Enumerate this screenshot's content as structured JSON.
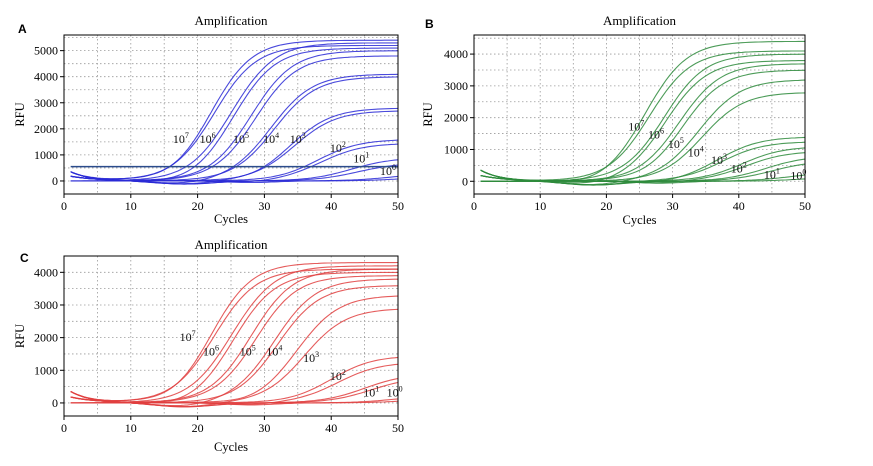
{
  "chart_data": [
    {
      "panel": "A",
      "type": "line",
      "title": "Amplification",
      "xlabel": "Cycles",
      "ylabel": "RFU",
      "xlim": [
        0,
        50
      ],
      "ylim": [
        -500,
        5600
      ],
      "xticks": [
        0,
        10,
        20,
        30,
        40,
        50
      ],
      "yticks": [
        0,
        1000,
        2000,
        3000,
        4000,
        5000
      ],
      "grid": true,
      "color": "#2a2ad6",
      "threshold": 550,
      "series": [
        {
          "label": "10",
          "exp": "7",
          "ct": 18,
          "plateau": 5400
        },
        {
          "label": "10",
          "exp": "7",
          "ct": 18.5,
          "plateau": 5200
        },
        {
          "label": "10",
          "exp": "6",
          "ct": 21,
          "plateau": 5300
        },
        {
          "label": "10",
          "exp": "6",
          "ct": 21.5,
          "plateau": 5100
        },
        {
          "label": "10",
          "exp": "5",
          "ct": 24,
          "plateau": 5000
        },
        {
          "label": "10",
          "exp": "5",
          "ct": 24.5,
          "plateau": 4800
        },
        {
          "label": "10",
          "exp": "4",
          "ct": 27,
          "plateau": 4100
        },
        {
          "label": "10",
          "exp": "4",
          "ct": 27.5,
          "plateau": 4000
        },
        {
          "label": "10",
          "exp": "3",
          "ct": 30,
          "plateau": 2800
        },
        {
          "label": "10",
          "exp": "3",
          "ct": 30.5,
          "plateau": 2700
        },
        {
          "label": "10",
          "exp": "2",
          "ct": 34,
          "plateau": 1600
        },
        {
          "label": "10",
          "exp": "2",
          "ct": 34.5,
          "plateau": 1450
        },
        {
          "label": "10",
          "exp": "1",
          "ct": 39,
          "plateau": 900
        },
        {
          "label": "10",
          "exp": "1",
          "ct": 40,
          "plateau": 700
        },
        {
          "label": "10",
          "exp": "0",
          "ct": 45,
          "plateau": 300
        },
        {
          "label": "10",
          "exp": "0",
          "ct": 47,
          "plateau": 180
        }
      ],
      "labels": [
        {
          "base": "10",
          "exp": "7",
          "x": 17.5,
          "y": 1450
        },
        {
          "base": "10",
          "exp": "6",
          "x": 21.5,
          "y": 1450
        },
        {
          "base": "10",
          "exp": "5",
          "x": 26.5,
          "y": 1450
        },
        {
          "base": "10",
          "exp": "4",
          "x": 31,
          "y": 1450
        },
        {
          "base": "10",
          "exp": "3",
          "x": 35,
          "y": 1450
        },
        {
          "base": "10",
          "exp": "2",
          "x": 41,
          "y": 1120
        },
        {
          "base": "10",
          "exp": "1",
          "x": 44.5,
          "y": 700
        },
        {
          "base": "10",
          "exp": "0",
          "x": 48.5,
          "y": 230
        }
      ]
    },
    {
      "panel": "B",
      "type": "line",
      "title": "Amplification",
      "xlabel": "Cycles",
      "ylabel": "RFU",
      "xlim": [
        0,
        50
      ],
      "ylim": [
        -400,
        4600
      ],
      "xticks": [
        0,
        10,
        20,
        30,
        40,
        50
      ],
      "yticks": [
        0,
        1000,
        2000,
        3000,
        4000
      ],
      "grid": true,
      "color": "#2e8b3c",
      "threshold": 0,
      "series": [
        {
          "label": "10",
          "exp": "7",
          "ct": 22,
          "plateau": 4400
        },
        {
          "label": "10",
          "exp": "7",
          "ct": 22.5,
          "plateau": 4100
        },
        {
          "label": "10",
          "exp": "6",
          "ct": 24.5,
          "plateau": 4000
        },
        {
          "label": "10",
          "exp": "6",
          "ct": 25,
          "plateau": 3800
        },
        {
          "label": "10",
          "exp": "5",
          "ct": 27,
          "plateau": 3700
        },
        {
          "label": "10",
          "exp": "5",
          "ct": 27.5,
          "plateau": 3500
        },
        {
          "label": "10",
          "exp": "4",
          "ct": 30,
          "plateau": 3200
        },
        {
          "label": "10",
          "exp": "4",
          "ct": 30.5,
          "plateau": 2800
        },
        {
          "label": "10",
          "exp": "3",
          "ct": 33,
          "plateau": 1400
        },
        {
          "label": "10",
          "exp": "3",
          "ct": 33.5,
          "plateau": 1250
        },
        {
          "label": "10",
          "exp": "2",
          "ct": 36.5,
          "plateau": 1100
        },
        {
          "label": "10",
          "exp": "2",
          "ct": 37,
          "plateau": 950
        },
        {
          "label": "10",
          "exp": "1",
          "ct": 40,
          "plateau": 800
        },
        {
          "label": "10",
          "exp": "1",
          "ct": 41,
          "plateau": 650
        },
        {
          "label": "10",
          "exp": "0",
          "ct": 44,
          "plateau": 300
        },
        {
          "label": "10",
          "exp": "0",
          "ct": 46,
          "plateau": 150
        }
      ],
      "labels": [
        {
          "base": "10",
          "exp": "7",
          "x": 24.5,
          "y": 1600
        },
        {
          "base": "10",
          "exp": "6",
          "x": 27.5,
          "y": 1350
        },
        {
          "base": "10",
          "exp": "5",
          "x": 30.5,
          "y": 1050
        },
        {
          "base": "10",
          "exp": "4",
          "x": 33.5,
          "y": 780
        },
        {
          "base": "10",
          "exp": "3",
          "x": 37,
          "y": 550
        },
        {
          "base": "10",
          "exp": "2",
          "x": 40,
          "y": 280
        },
        {
          "base": "10",
          "exp": "1",
          "x": 45,
          "y": 80
        },
        {
          "base": "10",
          "exp": "0",
          "x": 49,
          "y": 60
        }
      ]
    },
    {
      "panel": "C",
      "type": "line",
      "title": "Amplification",
      "xlabel": "Cycles",
      "ylabel": "RFU",
      "xlim": [
        0,
        50
      ],
      "ylim": [
        -400,
        4500
      ],
      "xticks": [
        0,
        10,
        20,
        30,
        40,
        50
      ],
      "yticks": [
        0,
        1000,
        2000,
        3000,
        4000
      ],
      "grid": true,
      "color": "#e04040",
      "threshold": 0,
      "series": [
        {
          "label": "10",
          "exp": "7",
          "ct": 18,
          "plateau": 4300
        },
        {
          "label": "10",
          "exp": "7",
          "ct": 18.5,
          "plateau": 4100
        },
        {
          "label": "10",
          "exp": "6",
          "ct": 21,
          "plateau": 4200
        },
        {
          "label": "10",
          "exp": "6",
          "ct": 21.5,
          "plateau": 4000
        },
        {
          "label": "10",
          "exp": "5",
          "ct": 24,
          "plateau": 4100
        },
        {
          "label": "10",
          "exp": "5",
          "ct": 24.5,
          "plateau": 3900
        },
        {
          "label": "10",
          "exp": "4",
          "ct": 27.5,
          "plateau": 3800
        },
        {
          "label": "10",
          "exp": "4",
          "ct": 28,
          "plateau": 3600
        },
        {
          "label": "10",
          "exp": "3",
          "ct": 31,
          "plateau": 3300
        },
        {
          "label": "10",
          "exp": "3",
          "ct": 32,
          "plateau": 2900
        },
        {
          "label": "10",
          "exp": "2",
          "ct": 36,
          "plateau": 1450
        },
        {
          "label": "10",
          "exp": "2",
          "ct": 37,
          "plateau": 1250
        },
        {
          "label": "10",
          "exp": "1",
          "ct": 41,
          "plateau": 900
        },
        {
          "label": "10",
          "exp": "1",
          "ct": 42,
          "plateau": 800
        },
        {
          "label": "10",
          "exp": "0",
          "ct": 46,
          "plateau": 250
        },
        {
          "label": "10",
          "exp": "0",
          "ct": 48,
          "plateau": 150
        }
      ],
      "labels": [
        {
          "base": "10",
          "exp": "7",
          "x": 18.5,
          "y": 1900
        },
        {
          "base": "10",
          "exp": "6",
          "x": 22,
          "y": 1450
        },
        {
          "base": "10",
          "exp": "5",
          "x": 27.5,
          "y": 1450
        },
        {
          "base": "10",
          "exp": "4",
          "x": 31.5,
          "y": 1450
        },
        {
          "base": "10",
          "exp": "3",
          "x": 37,
          "y": 1250
        },
        {
          "base": "10",
          "exp": "2",
          "x": 41,
          "y": 700
        },
        {
          "base": "10",
          "exp": "1",
          "x": 46,
          "y": 200
        },
        {
          "base": "10",
          "exp": "0",
          "x": 49.5,
          "y": 200
        }
      ]
    }
  ]
}
